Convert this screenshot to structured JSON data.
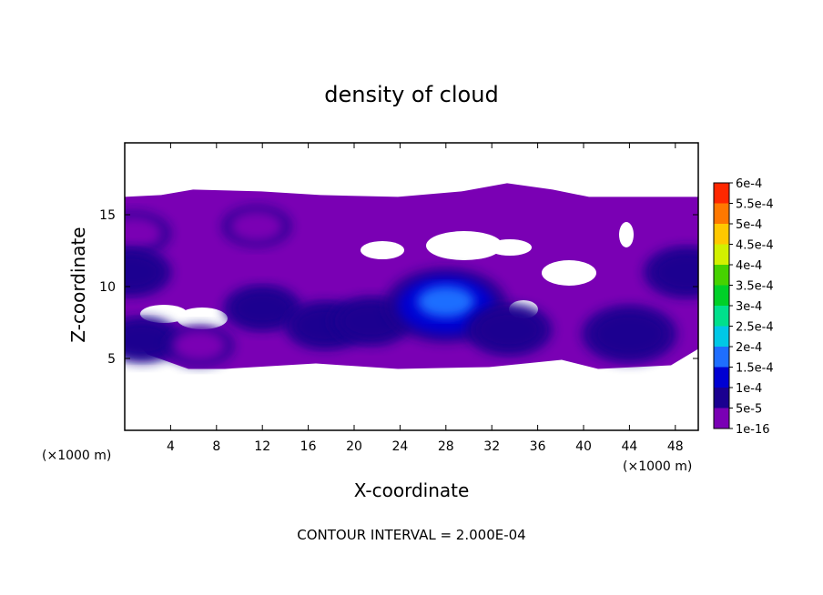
{
  "chart_data": {
    "type": "heatmap",
    "title": "density of cloud",
    "xlabel": "X-coordinate",
    "ylabel": "Z-coordinate",
    "x_unit": "(×1000 m)",
    "y_unit": "(×1000 m)",
    "xlim": [
      0,
      50
    ],
    "ylim": [
      0,
      20
    ],
    "x_ticks": [
      4,
      8,
      12,
      16,
      20,
      24,
      28,
      32,
      36,
      40,
      44,
      48
    ],
    "y_ticks": [
      5,
      10,
      15
    ],
    "colorbar": {
      "levels": [
        "1e-16",
        "5e-5",
        "1e-4",
        "1.5e-4",
        "2e-4",
        "2.5e-4",
        "3e-4",
        "3.5e-4",
        "4e-4",
        "4.5e-4",
        "5e-4",
        "5.5e-4",
        "6e-4"
      ],
      "colors": [
        "#7a00b4",
        "#1a0090",
        "#0000d2",
        "#1e6eff",
        "#00c8e6",
        "#00e08c",
        "#00d028",
        "#46d200",
        "#d2f000",
        "#ffc800",
        "#ff7800",
        "#ff2800",
        "#ff9a9a"
      ]
    },
    "cloud_layer": {
      "x_range": [
        0,
        50
      ],
      "z_range": [
        4.4,
        17
      ],
      "regions": [
        {
          "x": 0.8,
          "z": 13.7,
          "value": 7e-05
        },
        {
          "x": 0.5,
          "z": 11.0,
          "value": 9e-05
        },
        {
          "x": 1.5,
          "z": 6.3,
          "value": 8e-05
        },
        {
          "x": 6.5,
          "z": 5.9,
          "value": 6e-05
        },
        {
          "x": 11.5,
          "z": 14.2,
          "value": 6e-05
        },
        {
          "x": 12.0,
          "z": 8.5,
          "value": 8e-05
        },
        {
          "x": 17.5,
          "z": 7.3,
          "value": 9e-05
        },
        {
          "x": 21.5,
          "z": 7.6,
          "value": 9e-05
        },
        {
          "x": 28.0,
          "z": 8.7,
          "value": 0.00018
        },
        {
          "x": 33.5,
          "z": 7.0,
          "value": 0.0001
        },
        {
          "x": 44.0,
          "z": 6.7,
          "value": 0.00012
        },
        {
          "x": 49.0,
          "z": 11.0,
          "value": 0.0001
        }
      ]
    }
  },
  "footer": "CONTOUR INTERVAL = 2.000E-04"
}
